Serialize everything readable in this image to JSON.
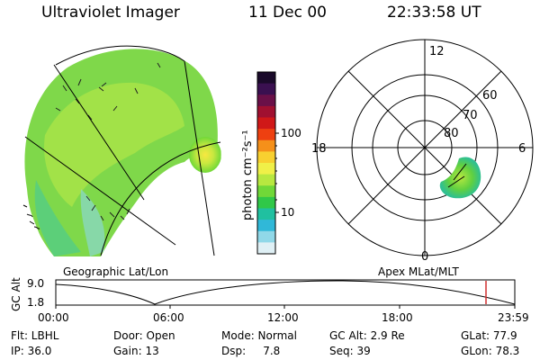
{
  "header": {
    "title": "Ultraviolet Imager",
    "date": "11 Dec 00",
    "time": "22:33:58 UT"
  },
  "colorbar": {
    "label": "photon cm⁻²s⁻¹",
    "ticks": [
      "100",
      "10"
    ],
    "colors": [
      "#1a0a2a",
      "#3a1050",
      "#6a1048",
      "#a01030",
      "#d01818",
      "#ee4010",
      "#f5901a",
      "#f8d030",
      "#f0f048",
      "#b8e840",
      "#70d838",
      "#30c848",
      "#20c0a0",
      "#30b8d8",
      "#90d8e8",
      "#dff0f5"
    ]
  },
  "panels": {
    "left_label": "Geographic Lat/Lon",
    "right_label": "Apex MLat/MLT",
    "polar": {
      "mlt_labels": [
        "12",
        "18",
        "6",
        "0"
      ],
      "lat_labels": [
        "60",
        "70",
        "80"
      ]
    }
  },
  "timeline": {
    "axis_title": "GC Alt",
    "y_ticks": [
      "9.0",
      "1.8"
    ],
    "x_ticks": [
      "00:00",
      "06:00",
      "12:00",
      "18:00",
      "23:59"
    ],
    "marker_color": "#d03030"
  },
  "info": {
    "col1": [
      "Flt: LBHL",
      "IP: 36.0"
    ],
    "col2": [
      "Door: Open",
      "Gain: 13"
    ],
    "col3": [
      "Mode: Normal",
      "Dsp:     7.8"
    ],
    "col4": [
      "GC Alt: 2.9 Re",
      "Seq: 39"
    ],
    "col5": [
      "GLat: 77.9",
      "GLon: 78.3"
    ]
  }
}
